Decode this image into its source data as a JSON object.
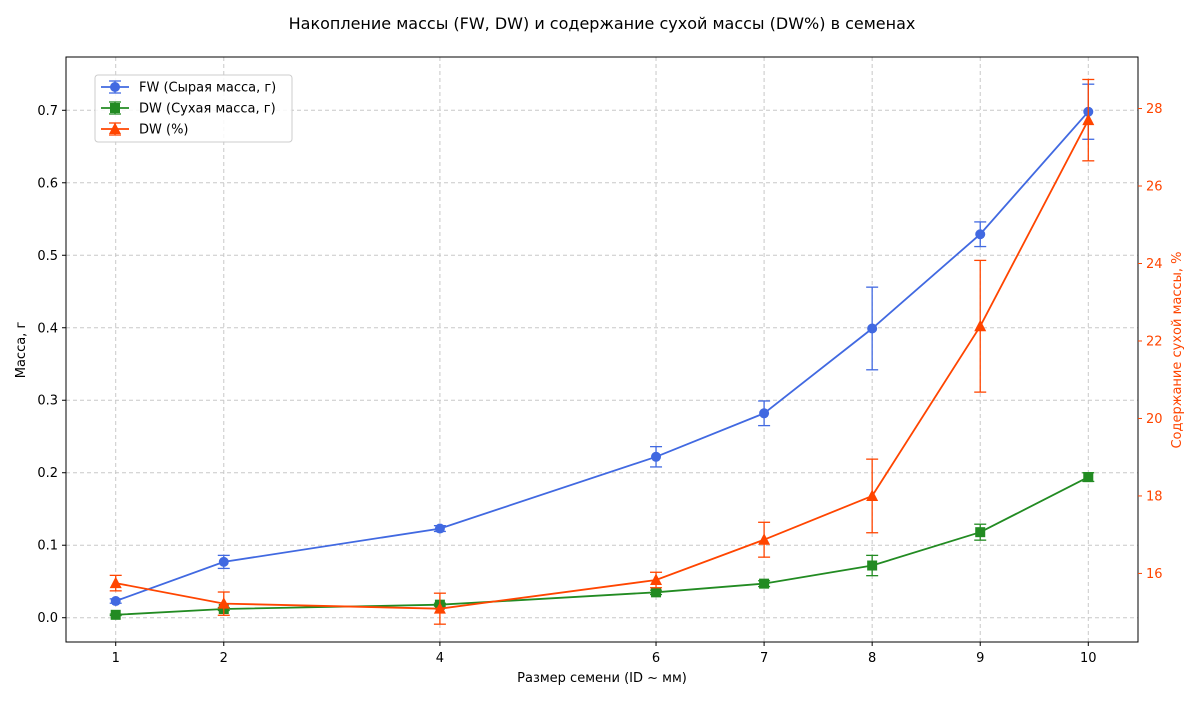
{
  "chart_data": {
    "type": "line",
    "title": "Накопление массы (FW, DW) и содержание сухой массы (DW%) в семенах",
    "xlabel": "Размер семени (ID ~ мм)",
    "ylabel": "Масса, г",
    "ylabel_right": "Содержание сухой массы, %",
    "x": [
      1,
      2,
      4,
      6,
      7,
      8,
      9,
      10
    ],
    "x_ticks": [
      "1",
      "2",
      "4",
      "6",
      "7",
      "8",
      "9",
      "10"
    ],
    "xlim": [
      0.54,
      10.46
    ],
    "ylim": [
      -0.0335,
      0.7735
    ],
    "ylim_right": [
      14.23,
      29.33
    ],
    "y_ticks": [
      "0.0",
      "0.1",
      "0.2",
      "0.3",
      "0.4",
      "0.5",
      "0.6",
      "0.7"
    ],
    "y_right_ticks": [
      "16",
      "18",
      "20",
      "22",
      "24",
      "26",
      "28"
    ],
    "grid": true,
    "legend_position": "upper-left",
    "series": [
      {
        "name": "FW (Сырая масса, г)",
        "axis": "left",
        "marker": "circle",
        "color": "#4169e1",
        "values": [
          0.023,
          0.077,
          0.123,
          0.222,
          0.282,
          0.399,
          0.529,
          0.698
        ],
        "errors": [
          0.003,
          0.009,
          0.004,
          0.014,
          0.017,
          0.057,
          0.017,
          0.038
        ]
      },
      {
        "name": "DW (Сухая масса, г)",
        "axis": "left",
        "marker": "square",
        "color": "#228b22",
        "values": [
          0.004,
          0.012,
          0.018,
          0.035,
          0.047,
          0.072,
          0.118,
          0.194
        ],
        "errors": [
          0.001,
          0.002,
          0.002,
          0.003,
          0.004,
          0.014,
          0.011,
          0.006
        ]
      },
      {
        "name": "DW (%)",
        "axis": "right",
        "marker": "triangle",
        "color": "#ff4500",
        "values": [
          15.75,
          15.22,
          15.09,
          15.83,
          16.87,
          18.0,
          22.38,
          27.7
        ],
        "errors": [
          0.2,
          0.3,
          0.4,
          0.2,
          0.45,
          0.95,
          1.7,
          1.05
        ]
      }
    ]
  }
}
